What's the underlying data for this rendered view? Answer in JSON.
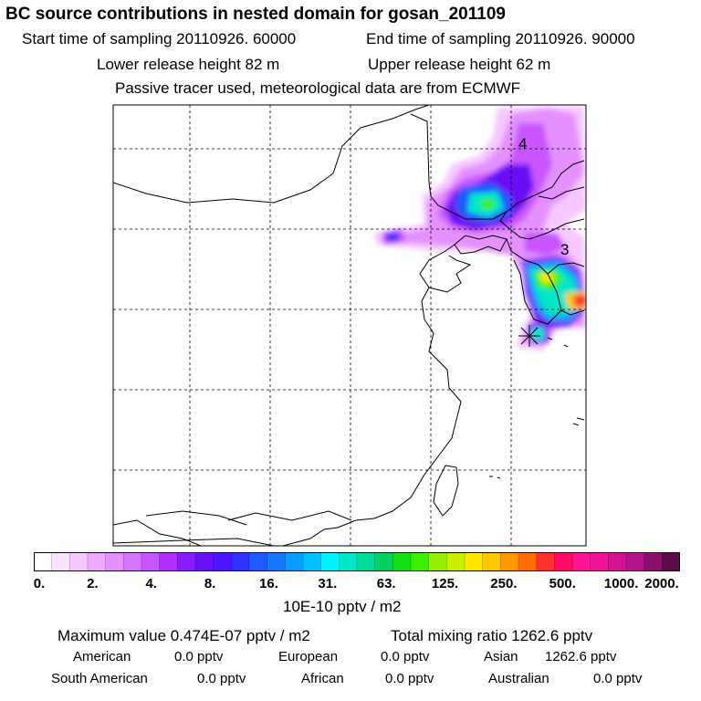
{
  "header": {
    "title": "BC  source contributions in nested domain for gosan_201109",
    "start_time": "Start time of sampling 20110926. 60000",
    "end_time": "End time of sampling 20110926. 90000",
    "lower_release": "Lower release height   82 m",
    "upper_release": "Upper release height   62 m",
    "tracer_note": "Passive tracer used, meteorological data are from ECMWF"
  },
  "map": {
    "labels": [
      "4",
      "3"
    ]
  },
  "colorbar": {
    "ticks": [
      "0.",
      "2.",
      "4.",
      "8.",
      "16.",
      "31.",
      "63.",
      "125.",
      "250.",
      "500.",
      "1000.",
      "2000."
    ],
    "colors": [
      "#ffffff",
      "#fbe3ff",
      "#f6c8ff",
      "#efaaff",
      "#e490ff",
      "#d873ff",
      "#c855ff",
      "#b22dff",
      "#8c1aff",
      "#6a10f5",
      "#4c14ff",
      "#3030ff",
      "#1e5aff",
      "#1478ff",
      "#0a9cff",
      "#00c0ff",
      "#00f0ff",
      "#00e6c8",
      "#00dc9a",
      "#00d264",
      "#12df12",
      "#3cf000",
      "#96f000",
      "#c8f000",
      "#ffe600",
      "#ffc800",
      "#ff9a00",
      "#ff6e00",
      "#ff3030",
      "#ff0a64",
      "#ff1493",
      "#f0149a",
      "#d21493",
      "#b4148c",
      "#8c0f6e",
      "#5f0a4b"
    ],
    "unit": "10E-10 pptv / m2"
  },
  "summary": {
    "maximum": "Maximum value  0.474E-07 pptv / m2",
    "total": "Total mixing ratio      1262.6 pptv",
    "regions": [
      {
        "name": "American",
        "value": "0.0 pptv"
      },
      {
        "name": "European",
        "value": "0.0 pptv"
      },
      {
        "name": "Asian",
        "value": "1262.6 pptv"
      },
      {
        "name": "South American",
        "value": "0.0 pptv"
      },
      {
        "name": "African",
        "value": "0.0 pptv"
      },
      {
        "name": "Australian",
        "value": "0.0 pptv"
      }
    ]
  }
}
